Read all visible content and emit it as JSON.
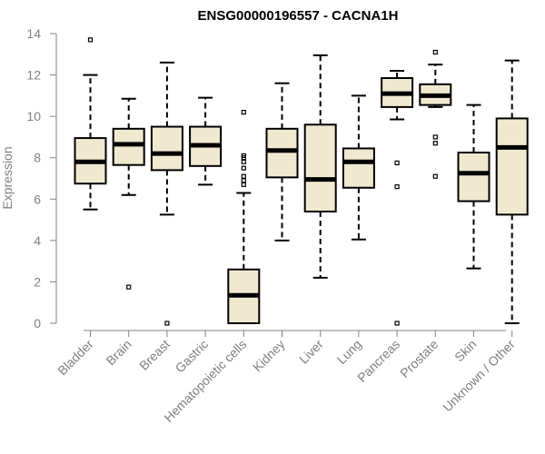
{
  "chart_data": {
    "type": "boxplot",
    "title": "ENSG00000196557 - CACNA1H",
    "ylabel": "Expression",
    "ylim": [
      0,
      14
    ],
    "yticks": [
      0,
      2,
      4,
      6,
      8,
      10,
      12,
      14
    ],
    "grid": false,
    "categories": [
      "Bladder",
      "Brain",
      "Breast",
      "Gastric",
      "Hematopoietic cells",
      "Kidney",
      "Liver",
      "Lung",
      "Pancreas",
      "Prostate",
      "Skin",
      "Unknown / Other"
    ],
    "boxes": [
      {
        "min": 5.5,
        "q1": 6.75,
        "median": 7.8,
        "q3": 8.95,
        "max": 12.0,
        "outliers": [
          13.7
        ]
      },
      {
        "min": 6.2,
        "q1": 7.65,
        "median": 8.65,
        "q3": 9.4,
        "max": 10.85,
        "outliers": [
          1.75
        ]
      },
      {
        "min": 5.25,
        "q1": 7.4,
        "median": 8.2,
        "q3": 9.5,
        "max": 12.6,
        "outliers": [
          0.0
        ]
      },
      {
        "min": 6.7,
        "q1": 7.6,
        "median": 8.6,
        "q3": 9.5,
        "max": 10.9,
        "outliers": []
      },
      {
        "min": 0.0,
        "q1": 0.0,
        "median": 1.35,
        "q3": 2.6,
        "max": 6.3,
        "outliers": [
          6.7,
          6.9,
          7.1,
          7.5,
          7.8,
          8.0,
          8.1,
          10.2
        ]
      },
      {
        "min": 4.0,
        "q1": 7.05,
        "median": 8.35,
        "q3": 9.4,
        "max": 11.6,
        "outliers": []
      },
      {
        "min": 2.2,
        "q1": 5.4,
        "median": 6.95,
        "q3": 9.6,
        "max": 12.95,
        "outliers": []
      },
      {
        "min": 4.05,
        "q1": 6.55,
        "median": 7.8,
        "q3": 8.45,
        "max": 11.0,
        "outliers": []
      },
      {
        "min": 9.85,
        "q1": 10.45,
        "median": 11.1,
        "q3": 11.85,
        "max": 12.2,
        "outliers": [
          7.75,
          6.6,
          0.0
        ]
      },
      {
        "min": 10.45,
        "q1": 10.55,
        "median": 11.0,
        "q3": 11.55,
        "max": 12.5,
        "outliers": [
          13.1,
          9.0,
          8.7,
          7.1
        ]
      },
      {
        "min": 2.65,
        "q1": 5.9,
        "median": 7.25,
        "q3": 8.25,
        "max": 10.55,
        "outliers": []
      },
      {
        "min": 0.0,
        "q1": 5.25,
        "median": 8.5,
        "q3": 9.9,
        "max": 12.7,
        "outliers": []
      }
    ]
  }
}
